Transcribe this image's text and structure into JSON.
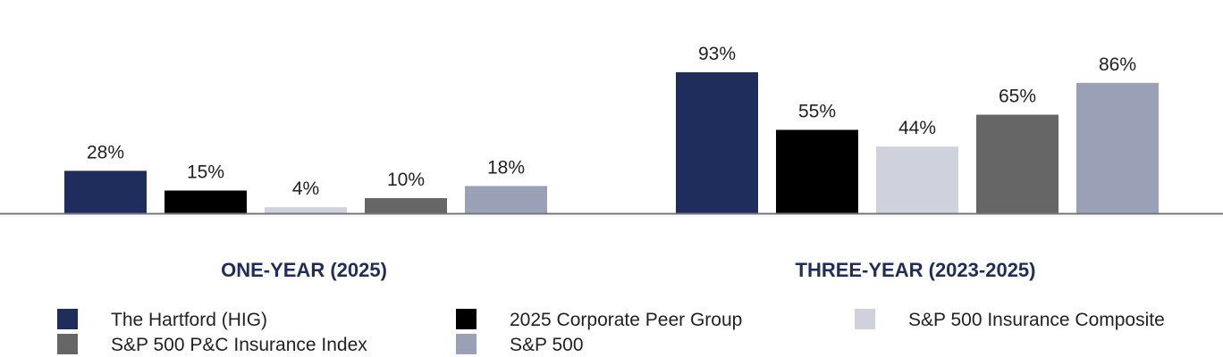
{
  "chart_data": {
    "type": "bar",
    "categories": [
      "ONE-YEAR (2025)",
      "THREE-YEAR (2023-2025)"
    ],
    "series": [
      {
        "name": "The Hartford (HIG)",
        "color": "#1f2d5c",
        "values": [
          28,
          93
        ],
        "labels": [
          "28%",
          "93%"
        ]
      },
      {
        "name": "2025 Corporate Peer Group",
        "color": "#000000",
        "values": [
          15,
          55
        ],
        "labels": [
          "15%",
          "55%"
        ]
      },
      {
        "name": "S&P 500 Insurance Composite",
        "color": "#cfd1dc",
        "values": [
          4,
          44
        ],
        "labels": [
          "4%",
          "44%"
        ]
      },
      {
        "name": "S&P 500 P&C Insurance Index",
        "color": "#666666",
        "values": [
          10,
          65
        ],
        "labels": [
          "10%",
          "65%"
        ]
      },
      {
        "name": "S&P 500",
        "color": "#9aa0b5",
        "values": [
          18,
          86
        ],
        "labels": [
          "18%",
          "86%"
        ]
      }
    ],
    "legend": "bottom",
    "grid": false
  }
}
